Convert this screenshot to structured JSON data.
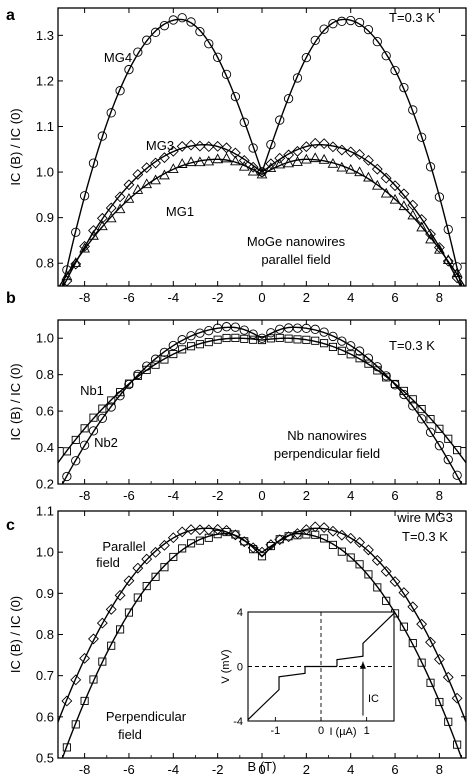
{
  "chart_data": [
    {
      "id": "a",
      "type": "scatter",
      "panel_letter": "a",
      "xlim": [
        -9.2,
        9.2
      ],
      "ylim": [
        0.75,
        1.36
      ],
      "xticks": [
        -8,
        -6,
        -4,
        -2,
        0,
        2,
        4,
        6,
        8
      ],
      "yticks": [
        0.8,
        0.9,
        1.0,
        1.1,
        1.2,
        1.3
      ],
      "xtick_labels": [
        "-8",
        "-6",
        "-4",
        "-2",
        "0",
        "2",
        "4",
        "6",
        "8"
      ],
      "ytick_labels": [
        "0.8",
        "0.9",
        "1.0",
        "1.1",
        "1.2",
        "1.3"
      ],
      "ylabel": "IC (B) / IC (0)",
      "annotations": [
        {
          "key": "temp",
          "text": "T=0.3 K"
        },
        {
          "key": "mg4",
          "text": "MG4"
        },
        {
          "key": "mg3",
          "text": "MG3"
        },
        {
          "key": "mg1",
          "text": "MG1"
        },
        {
          "key": "desc1",
          "text": "MoGe nanowires"
        },
        {
          "key": "desc2",
          "text": "parallel field"
        }
      ],
      "series": [
        {
          "name": "MG4",
          "marker": "circle",
          "peak_x": 3.7,
          "peak_y": 1.335,
          "edge_y": 0.745,
          "min_y": 1.0
        },
        {
          "name": "MG3",
          "marker": "diamond",
          "peak_x": 2.6,
          "peak_y": 1.06,
          "edge_y": 0.745,
          "min_y": 1.0
        },
        {
          "name": "MG1",
          "marker": "triangle",
          "peak_x": 2.0,
          "peak_y": 1.028,
          "edge_y": 0.76,
          "min_y": 0.995
        }
      ]
    },
    {
      "id": "b",
      "type": "scatter",
      "panel_letter": "b",
      "xlim": [
        -9.2,
        9.2
      ],
      "ylim": [
        0.2,
        1.1
      ],
      "xticks": [
        -8,
        -6,
        -4,
        -2,
        0,
        2,
        4,
        6,
        8
      ],
      "yticks": [
        0.2,
        0.4,
        0.6,
        0.8,
        1.0
      ],
      "xtick_labels": [
        "-8",
        "-6",
        "-4",
        "-2",
        "0",
        "2",
        "4",
        "6",
        "8"
      ],
      "ytick_labels": [
        "0.2",
        "0.4",
        "0.6",
        "0.8",
        "1.0"
      ],
      "ylabel": "IC (B) / IC (0)",
      "annotations": [
        {
          "key": "temp",
          "text": "T=0.3 K"
        },
        {
          "key": "nb1",
          "text": "Nb1"
        },
        {
          "key": "nb2",
          "text": "Nb2"
        },
        {
          "key": "desc1",
          "text": "Nb nanowires"
        },
        {
          "key": "desc2",
          "text": "perpendicular field"
        }
      ],
      "series": [
        {
          "name": "Nb1",
          "marker": "square",
          "peak_x": 1.1,
          "peak_y": 1.0,
          "edge_y": 0.35,
          "min_y": 0.99
        },
        {
          "name": "Nb2",
          "marker": "circle",
          "peak_x": 1.4,
          "peak_y": 1.06,
          "edge_y": 0.2,
          "min_y": 1.0
        }
      ]
    },
    {
      "id": "c",
      "type": "scatter",
      "panel_letter": "c",
      "xlim": [
        -9.2,
        9.2
      ],
      "ylim": [
        0.5,
        1.1
      ],
      "xticks": [
        -8,
        -6,
        -4,
        -2,
        0,
        2,
        4,
        6,
        8
      ],
      "yticks": [
        0.5,
        0.6,
        0.7,
        0.8,
        0.9,
        1.0,
        1.1
      ],
      "xtick_labels": [
        "-8",
        "-6",
        "-4",
        "-2",
        "0",
        "2",
        "4",
        "6",
        "8"
      ],
      "ytick_labels": [
        "0.5",
        "0.6",
        "0.7",
        "0.8",
        "0.9",
        "1.0",
        "1.1"
      ],
      "xlabel": "B (T)",
      "ylabel": "IC (B) / IC (0)",
      "annotations": [
        {
          "key": "wire",
          "text": "wire MG3"
        },
        {
          "key": "temp",
          "text": "T=0.3 K"
        },
        {
          "key": "par1",
          "text": "Parallel"
        },
        {
          "key": "par2",
          "text": "field"
        },
        {
          "key": "perp1",
          "text": "Perpendicular"
        },
        {
          "key": "perp2",
          "text": "field"
        }
      ],
      "series": [
        {
          "name": "Parallel field",
          "marker": "diamond",
          "peak_x": 2.5,
          "peak_y": 1.058,
          "edge_y": 0.615,
          "min_y": 1.0
        },
        {
          "name": "Perpendicular field",
          "marker": "square",
          "peak_x": 1.6,
          "peak_y": 1.045,
          "edge_y": 0.5,
          "min_y": 0.99
        }
      ],
      "inset": {
        "xlim": [
          -1.6,
          1.6
        ],
        "ylim": [
          -4,
          4
        ],
        "xticks": [
          -1,
          0,
          1
        ],
        "yticks": [
          -4,
          0,
          4
        ],
        "xtick_labels": [
          "-1",
          "0",
          "1"
        ],
        "ytick_labels": [
          "-4",
          "0",
          "4"
        ],
        "xlabel": "I (µA)",
        "ylabel": "V (mV)",
        "arrow_label": "IC"
      }
    }
  ]
}
